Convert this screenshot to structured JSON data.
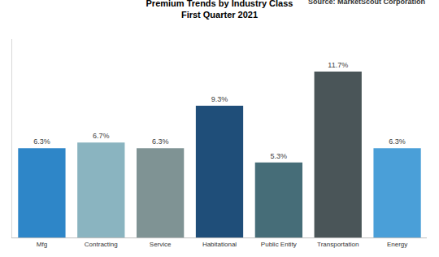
{
  "chart_data": {
    "type": "bar",
    "title": "Premium Trends by Industry Class",
    "subtitle": "First Quarter 2021",
    "annotations": [
      "Source: MarketScout Corporation"
    ],
    "categories": [
      "Mfg",
      "Contracting",
      "Service",
      "Habitational",
      "Public Entity",
      "Transportation",
      "Energy"
    ],
    "values": [
      6.3,
      6.7,
      6.3,
      9.3,
      5.3,
      11.7,
      6.3
    ],
    "value_labels": [
      "6.3%",
      "6.7%",
      "6.3%",
      "9.3%",
      "5.3%",
      "11.7%",
      "6.3%"
    ],
    "colors": [
      "#2e86c8",
      "#8ab4c0",
      "#7f9394",
      "#1f4e79",
      "#466d78",
      "#4a5558",
      "#4a9fd8"
    ],
    "ylim": [
      0,
      14
    ],
    "yticks": [],
    "grid": false,
    "data_labels": true,
    "tick_labels": "x"
  }
}
